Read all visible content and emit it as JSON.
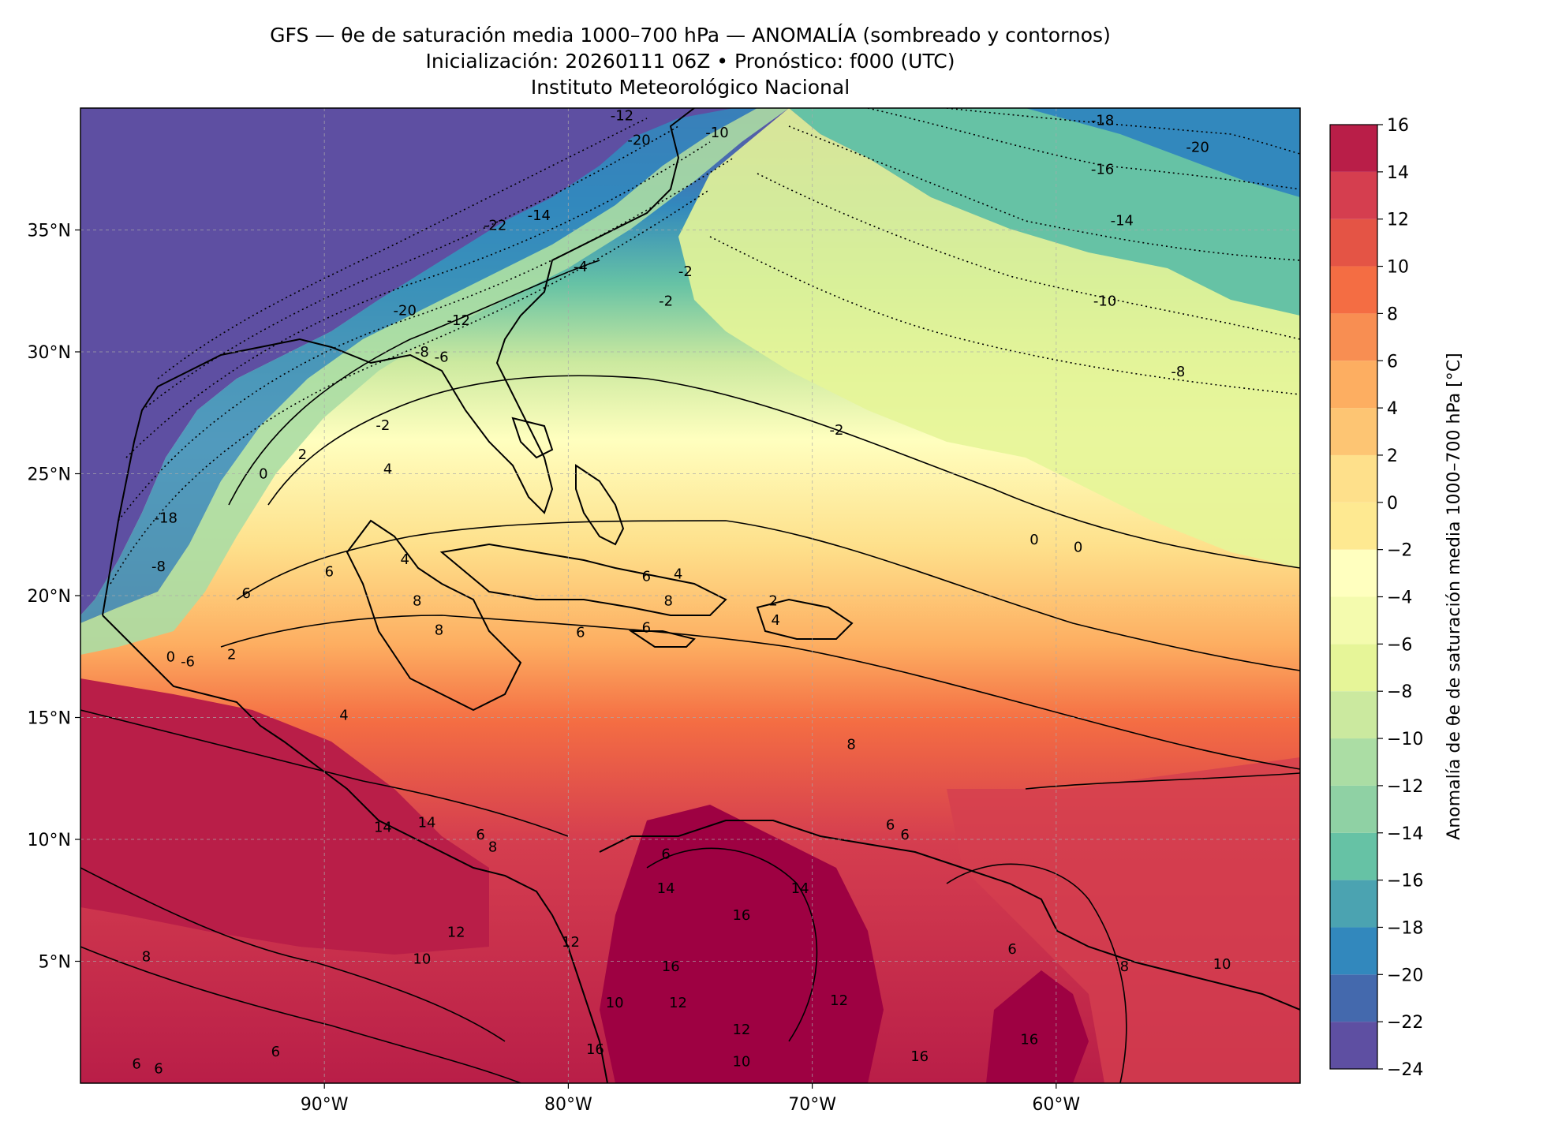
{
  "title": {
    "line1": "GFS — θe de saturación media 1000–700 hPa — ANOMALÍA (sombreado y contornos)",
    "line2": "Inicialización: 20260111 06Z   •   Pronóstico: f000 (UTC)",
    "line3": "Instituto Meteorológico Nacional"
  },
  "map": {
    "lon_range": [
      -100,
      -50
    ],
    "lat_range": [
      0,
      40
    ],
    "lon_ticks": [
      {
        "value": -90,
        "label": "90°W"
      },
      {
        "value": -80,
        "label": "80°W"
      },
      {
        "value": -70,
        "label": "70°W"
      },
      {
        "value": -60,
        "label": "60°W"
      }
    ],
    "lat_ticks": [
      {
        "value": 35,
        "label": "35°N"
      },
      {
        "value": 30,
        "label": "30°N"
      },
      {
        "value": 25,
        "label": "25°N"
      },
      {
        "value": 20,
        "label": "20°N"
      },
      {
        "value": 15,
        "label": "15°N"
      },
      {
        "value": 10,
        "label": "10°N"
      },
      {
        "value": 5,
        "label": "5°N"
      }
    ],
    "gridlines": true
  },
  "colorbar": {
    "label": "Anomalía de θe de saturación media 1000–700 hPa [°C]",
    "levels": [
      -24,
      -22,
      -20,
      -18,
      -16,
      -14,
      -12,
      -10,
      -8,
      -6,
      -4,
      -2,
      0,
      2,
      4,
      6,
      8,
      10,
      12,
      14,
      16
    ],
    "colors": [
      "#5e4fa2",
      "#4469ad",
      "#3288bd",
      "#4ba3b1",
      "#66c2a5",
      "#8fd1a4",
      "#abdda4",
      "#cbe99f",
      "#e6f598",
      "#f4fbae",
      "#ffffbf",
      "#fee991",
      "#fee08b",
      "#fdc573",
      "#fdae61",
      "#f88e52",
      "#f46d43",
      "#e45445",
      "#d53e4f",
      "#b91e48",
      "#9e0142"
    ],
    "tick_labels": [
      "16",
      "14",
      "12",
      "10",
      "8",
      "6",
      "4",
      "2",
      "0",
      "−2",
      "−4",
      "−6",
      "−8",
      "−10",
      "−12",
      "−14",
      "−16",
      "−18",
      "−20",
      "−22",
      "−24"
    ]
  },
  "contour_labels": [
    {
      "text": "-12",
      "lon": -77.8,
      "lat": 39.5
    },
    {
      "text": "-18",
      "lon": -58.1,
      "lat": 39.3
    },
    {
      "text": "-20",
      "lon": -54.2,
      "lat": 38.2
    },
    {
      "text": "-16",
      "lon": -58.1,
      "lat": 37.3
    },
    {
      "text": "-14",
      "lon": -57.3,
      "lat": 35.2
    },
    {
      "text": "-10",
      "lon": -73.9,
      "lat": 38.8
    },
    {
      "text": "-20",
      "lon": -77.1,
      "lat": 38.5
    },
    {
      "text": "-22",
      "lon": -83.0,
      "lat": 35.0
    },
    {
      "text": "-14",
      "lon": -81.2,
      "lat": 35.4
    },
    {
      "text": "-20",
      "lon": -86.7,
      "lat": 31.5
    },
    {
      "text": "-12",
      "lon": -84.5,
      "lat": 31.1
    },
    {
      "text": "-8",
      "lon": -86.0,
      "lat": 29.8
    },
    {
      "text": "-6",
      "lon": -85.2,
      "lat": 29.6
    },
    {
      "text": "-4",
      "lon": -79.5,
      "lat": 33.3
    },
    {
      "text": "-2",
      "lon": -75.2,
      "lat": 33.1
    },
    {
      "text": "-2",
      "lon": -76.0,
      "lat": 31.9
    },
    {
      "text": "-10",
      "lon": -58.0,
      "lat": 31.9
    },
    {
      "text": "-8",
      "lon": -55.0,
      "lat": 29.0
    },
    {
      "text": "-2",
      "lon": -87.6,
      "lat": 26.8
    },
    {
      "text": "-2",
      "lon": -69.0,
      "lat": 26.6
    },
    {
      "text": "0",
      "lon": -92.5,
      "lat": 24.8
    },
    {
      "text": "2",
      "lon": -90.9,
      "lat": 25.6
    },
    {
      "text": "4",
      "lon": -87.4,
      "lat": 25.0
    },
    {
      "text": "-18",
      "lon": -96.5,
      "lat": 23.0
    },
    {
      "text": "-8",
      "lon": -96.8,
      "lat": 21.0
    },
    {
      "text": "0",
      "lon": -60.9,
      "lat": 22.1
    },
    {
      "text": "0",
      "lon": -59.1,
      "lat": 21.8
    },
    {
      "text": "4",
      "lon": -86.7,
      "lat": 21.3
    },
    {
      "text": "6",
      "lon": -89.8,
      "lat": 20.8
    },
    {
      "text": "6",
      "lon": -93.2,
      "lat": 19.9
    },
    {
      "text": "8",
      "lon": -86.2,
      "lat": 19.6
    },
    {
      "text": "6",
      "lon": -76.8,
      "lat": 20.6
    },
    {
      "text": "4",
      "lon": -75.5,
      "lat": 20.7
    },
    {
      "text": "8",
      "lon": -75.9,
      "lat": 19.6
    },
    {
      "text": "2",
      "lon": -71.6,
      "lat": 19.6
    },
    {
      "text": "4",
      "lon": -71.5,
      "lat": 18.8
    },
    {
      "text": "8",
      "lon": -85.3,
      "lat": 18.4
    },
    {
      "text": "6",
      "lon": -76.8,
      "lat": 18.5
    },
    {
      "text": "6",
      "lon": -79.5,
      "lat": 18.3
    },
    {
      "text": "-6",
      "lon": -95.6,
      "lat": 17.1
    },
    {
      "text": "0",
      "lon": -96.3,
      "lat": 17.3
    },
    {
      "text": "2",
      "lon": -93.8,
      "lat": 17.4
    },
    {
      "text": "4",
      "lon": -89.2,
      "lat": 14.9
    },
    {
      "text": "8",
      "lon": -68.4,
      "lat": 13.7
    },
    {
      "text": "14",
      "lon": -87.6,
      "lat": 10.3
    },
    {
      "text": "14",
      "lon": -85.8,
      "lat": 10.5
    },
    {
      "text": "6",
      "lon": -83.6,
      "lat": 10.0
    },
    {
      "text": "8",
      "lon": -83.1,
      "lat": 9.5
    },
    {
      "text": "6",
      "lon": -66.8,
      "lat": 10.4
    },
    {
      "text": "6",
      "lon": -66.2,
      "lat": 10.0
    },
    {
      "text": "6",
      "lon": -76.0,
      "lat": 9.2
    },
    {
      "text": "14",
      "lon": -76.0,
      "lat": 7.8
    },
    {
      "text": "14",
      "lon": -70.5,
      "lat": 7.8
    },
    {
      "text": "16",
      "lon": -72.9,
      "lat": 6.7
    },
    {
      "text": "12",
      "lon": -84.6,
      "lat": 6.0
    },
    {
      "text": "12",
      "lon": -79.9,
      "lat": 5.6
    },
    {
      "text": "10",
      "lon": -86.0,
      "lat": 4.9
    },
    {
      "text": "8",
      "lon": -97.3,
      "lat": 5.0
    },
    {
      "text": "6",
      "lon": -61.8,
      "lat": 5.3
    },
    {
      "text": "8",
      "lon": -57.2,
      "lat": 4.6
    },
    {
      "text": "10",
      "lon": -53.2,
      "lat": 4.7
    },
    {
      "text": "16",
      "lon": -75.8,
      "lat": 4.6
    },
    {
      "text": "10",
      "lon": -78.1,
      "lat": 3.1
    },
    {
      "text": "12",
      "lon": -75.5,
      "lat": 3.1
    },
    {
      "text": "12",
      "lon": -68.9,
      "lat": 3.2
    },
    {
      "text": "12",
      "lon": -72.9,
      "lat": 2.0
    },
    {
      "text": "16",
      "lon": -65.6,
      "lat": 0.9
    },
    {
      "text": "16",
      "lon": -61.1,
      "lat": 1.6
    },
    {
      "text": "10",
      "lon": -72.9,
      "lat": 0.7
    },
    {
      "text": "6",
      "lon": -97.7,
      "lat": 0.6
    },
    {
      "text": "6",
      "lon": -92.0,
      "lat": 1.1
    },
    {
      "text": "6",
      "lon": -96.8,
      "lat": 0.4
    },
    {
      "text": "16",
      "lon": -78.9,
      "lat": 1.2
    }
  ]
}
